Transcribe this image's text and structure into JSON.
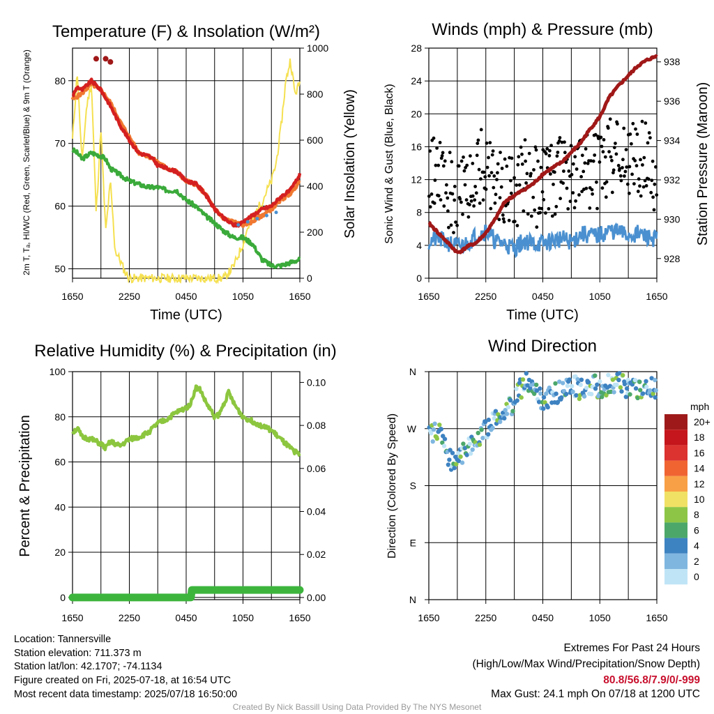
{
  "colors": {
    "temp": "#d42020",
    "heat_index": "#f07830",
    "dewpoint": "#3aaa3a",
    "solar": "#f5e050",
    "wind": "#4a90d0",
    "gust": "#000000",
    "pressure": "#a01818",
    "rh": "#8cc63f",
    "precip": "#3db53d"
  },
  "charts": {
    "temp": {
      "title": "Temperature (F) & Insolation (W/m²)",
      "ylabel_left": "2m T, Tₐ, HI/WC (Red, Green, Scarlet/Blue) & 9m T (Orange)",
      "ylabel_right": "Solar Insolation (Yellow)",
      "xlabel": "Time (UTC)"
    },
    "winds": {
      "title": "Winds (mph) & Pressure (mb)",
      "ylabel_left": "Sonic Wind & Gust (Blue, Black)",
      "ylabel_right": "Station Pressure (Maroon)",
      "xlabel": "Time (UTC)"
    },
    "rh": {
      "title": "Relative Humidity (%) & Precipitation (in)",
      "ylabel_left": "Percent & Precipitation"
    },
    "wdir": {
      "title": "Wind Direction",
      "ylabel_left": "Direction (Colored By Speed)",
      "colorbar_title": "mph"
    }
  },
  "chart_data": [
    {
      "type": "line",
      "title": "Temperature (F) & Insolation (W/m2)",
      "xlabel": "Time (UTC)",
      "x_ticks": [
        "1650",
        "2250",
        "0450",
        "1050",
        "1650"
      ],
      "x_range_hours": [
        0,
        24
      ],
      "ylim_left": [
        48.5,
        85.2
      ],
      "yticks_left": [
        50,
        60,
        70,
        80
      ],
      "ylim_right": [
        0,
        1000
      ],
      "yticks_right": [
        0,
        200,
        400,
        600,
        800,
        1000
      ],
      "series": [
        {
          "name": "2m T",
          "axis": "left",
          "x": [
            0,
            0.5,
            1,
            2,
            3,
            4,
            5,
            6,
            7,
            8,
            8.5,
            9,
            10,
            11,
            12,
            13,
            14,
            15,
            16,
            17,
            17.5,
            18,
            19,
            20,
            21,
            22,
            23,
            24
          ],
          "y": [
            77.5,
            79,
            78.5,
            80,
            78.5,
            76,
            73,
            70.5,
            68.5,
            68,
            67.5,
            66.5,
            66,
            65.5,
            64,
            63.6,
            62,
            59.5,
            58,
            57,
            57,
            57.5,
            58.5,
            59.5,
            60,
            61.5,
            62.5,
            65
          ]
        },
        {
          "name": "9m T",
          "axis": "left",
          "x": [
            0,
            1,
            2,
            3,
            4,
            5,
            6,
            7,
            8,
            9,
            10,
            11,
            12,
            13,
            14,
            15,
            16,
            17,
            18,
            19,
            20,
            21,
            22,
            23,
            24
          ],
          "y": [
            77,
            78,
            79.5,
            78.5,
            76.5,
            73.5,
            71,
            68.5,
            68,
            67,
            66,
            65.5,
            64,
            63.5,
            62,
            59.5,
            58,
            57.5,
            57,
            57.5,
            58.5,
            59.5,
            61,
            62,
            64
          ]
        },
        {
          "name": "HI/WC",
          "axis": "left",
          "x": [
            2.5,
            3.5,
            4,
            17.5,
            18.5,
            19.5,
            20.5,
            21.5
          ],
          "y": [
            83.5,
            83.5,
            83,
            57,
            57.5,
            58,
            58.5,
            59
          ]
        },
        {
          "name": "Td",
          "axis": "left",
          "x": [
            0,
            0.5,
            1,
            2,
            3,
            3.5,
            4,
            5,
            6,
            7,
            8,
            9,
            10,
            11,
            12,
            13,
            14,
            15,
            16,
            17,
            18,
            19,
            20,
            21,
            22,
            23,
            24
          ],
          "y": [
            69,
            68.5,
            67.5,
            68.5,
            68,
            67.5,
            66,
            65,
            64,
            63.5,
            63,
            63,
            62.5,
            62.5,
            61,
            60,
            58.5,
            57.3,
            56,
            55,
            55,
            54,
            51.5,
            50.5,
            50.5,
            51,
            51.5
          ]
        },
        {
          "name": "Solar Insolation",
          "axis": "right",
          "x": [
            0,
            0.5,
            1,
            1.5,
            2,
            2.5,
            3,
            3.5,
            4,
            4.5,
            5,
            5.5,
            6,
            7,
            8,
            10,
            12,
            14,
            16,
            17,
            18,
            18.5,
            19,
            19.5,
            20,
            20.5,
            21,
            21.5,
            22,
            22.5,
            23,
            23.5,
            24
          ],
          "y": [
            600,
            900,
            500,
            750,
            850,
            280,
            650,
            200,
            420,
            120,
            80,
            30,
            0,
            0,
            0,
            0,
            0,
            0,
            0,
            50,
            150,
            220,
            250,
            300,
            330,
            380,
            420,
            500,
            650,
            850,
            950,
            800,
            850
          ]
        }
      ]
    },
    {
      "type": "line",
      "title": "Winds (mph) & Pressure (mb)",
      "xlabel": "Time (UTC)",
      "x_ticks": [
        "1650",
        "2250",
        "0450",
        "1050",
        "1650"
      ],
      "x_range_hours": [
        0,
        24
      ],
      "ylim_left": [
        0,
        28
      ],
      "yticks_left": [
        0,
        4,
        8,
        12,
        16,
        20,
        24,
        28
      ],
      "ylim_right": [
        927,
        938.7
      ],
      "yticks_right": [
        928,
        930,
        932,
        934,
        936,
        938
      ],
      "series": [
        {
          "name": "Sonic Wind",
          "axis": "left",
          "x": [
            0,
            1,
            2,
            3,
            4,
            5,
            6,
            7,
            8,
            9,
            10,
            11,
            12,
            13,
            14,
            15,
            16,
            17,
            18,
            19,
            20,
            21,
            22,
            23,
            24
          ],
          "y": [
            4.5,
            4.8,
            4.3,
            3.8,
            4.2,
            5.2,
            5.8,
            4.5,
            4.2,
            3.6,
            4.6,
            4.2,
            4.2,
            4.6,
            4.8,
            4.4,
            5.4,
            5.2,
            5.2,
            5.8,
            5.6,
            5.2,
            5.4,
            5.0,
            4.8
          ]
        },
        {
          "name": "Gust",
          "axis": "left",
          "x": [
            0,
            1,
            2,
            3,
            4,
            5,
            6,
            7,
            8,
            9,
            10,
            11,
            12,
            13,
            14,
            15,
            16,
            17,
            18,
            19,
            20,
            21,
            22,
            23,
            24
          ],
          "y": [
            12,
            13,
            11,
            9.5,
            10,
            13,
            14,
            12,
            11,
            10.5,
            12,
            11,
            11,
            12,
            13.5,
            13,
            14,
            13,
            12.5,
            16,
            14,
            13,
            15,
            14,
            12
          ]
        },
        {
          "name": "Station Pressure",
          "axis": "right",
          "x": [
            0,
            1,
            2,
            3,
            3.5,
            4,
            5,
            6,
            7,
            8,
            9,
            10,
            11,
            12,
            13,
            14,
            15,
            16,
            17,
            18,
            19,
            20,
            21,
            22,
            23,
            24
          ],
          "y": [
            929.8,
            929.3,
            928.8,
            928.3,
            928.4,
            928.6,
            928.8,
            929.3,
            930.0,
            930.9,
            931.2,
            931.5,
            931.8,
            932.3,
            932.6,
            932.9,
            933.4,
            933.9,
            934.6,
            935.2,
            936.2,
            936.8,
            937.3,
            937.8,
            938.1,
            938.3
          ]
        }
      ]
    },
    {
      "type": "line",
      "title": "Relative Humidity (%) & Precipitation (in)",
      "x_ticks": [
        "1650",
        "2250",
        "0450",
        "1050",
        "1650"
      ],
      "x_range_hours": [
        0,
        24
      ],
      "ylim_left": [
        -1,
        100
      ],
      "yticks_left": [
        0,
        20,
        40,
        60,
        80,
        100
      ],
      "ylim_right": [
        -0.001,
        0.105
      ],
      "yticks_right": [
        "0.00",
        "0.02",
        "0.04",
        "0.06",
        "0.08",
        "0.10"
      ],
      "series": [
        {
          "name": "Relative Humidity",
          "axis": "left",
          "x": [
            0,
            0.5,
            1,
            2,
            3,
            3.5,
            4,
            5,
            6,
            7,
            8,
            9,
            10,
            11,
            12,
            12.5,
            13,
            13.5,
            14,
            15,
            15.5,
            16,
            16.5,
            17,
            18,
            19,
            20,
            21,
            22,
            23,
            24
          ],
          "y": [
            73,
            75,
            71,
            70,
            68,
            66,
            69,
            67,
            70,
            71,
            73,
            77,
            79,
            82,
            84,
            86,
            93,
            92,
            87,
            80,
            81,
            86,
            91,
            86,
            80,
            78,
            76,
            74,
            70,
            66,
            63
          ]
        },
        {
          "name": "Precipitation",
          "axis": "left_mapped_precip",
          "x": [
            0,
            12.5,
            12.6,
            24
          ],
          "y": [
            0,
            0,
            0.0035,
            0.0035
          ]
        }
      ]
    },
    {
      "type": "scatter",
      "title": "Wind Direction",
      "x_ticks": [
        "1650",
        "2250",
        "0450",
        "1050",
        "1650"
      ],
      "x_range_hours": [
        0,
        24
      ],
      "yticks_left": [
        "N",
        "E",
        "S",
        "W",
        "N"
      ],
      "ylim_degrees": [
        0,
        360
      ],
      "series": [
        {
          "name": "Direction",
          "x": [
            0,
            1,
            2,
            3,
            4,
            5,
            6,
            7,
            8,
            9,
            10,
            11,
            12,
            13,
            14,
            15,
            16,
            17,
            18,
            19,
            20,
            21,
            22,
            23,
            24
          ],
          "y": [
            265,
            265,
            225,
            215,
            245,
            250,
            270,
            280,
            295,
            310,
            345,
            330,
            315,
            325,
            330,
            340,
            330,
            340,
            335,
            340,
            345,
            330,
            335,
            335,
            335
          ]
        }
      ],
      "colorbar": {
        "title": "mph",
        "labels": [
          "20+",
          "18",
          "16",
          "14",
          "12",
          "10",
          "8",
          "6",
          "4",
          "2",
          "0"
        ],
        "colors": [
          "#9e1a1a",
          "#c4161c",
          "#dc3230",
          "#f06432",
          "#f8a045",
          "#f0e164",
          "#8dc646",
          "#4ca86a",
          "#3d82c1",
          "#7fb6e0",
          "#bfe4f6"
        ]
      }
    }
  ],
  "info": {
    "location": "Location: Tannersville",
    "elevation": "Station elevation: 711.373 m",
    "latlon": "Station lat/lon: 42.1707; -74.1134",
    "created": "Figure created on Fri, 2025-07-18, at 16:54 UTC",
    "recent": "Most recent data timestamp: 2025/07/18 16:50:00"
  },
  "extremes": {
    "title": "Extremes For Past 24 Hours",
    "subtitle": "(High/Low/Max Wind/Precipitation/Snow Depth)",
    "values": "80.8/56.8/7.9/0/-999",
    "gust": "Max Gust: 24.1 mph On 07/18 at 1200 UTC"
  },
  "credit": "Created By Nick Bassill Using Data Provided By The NYS Mesonet"
}
